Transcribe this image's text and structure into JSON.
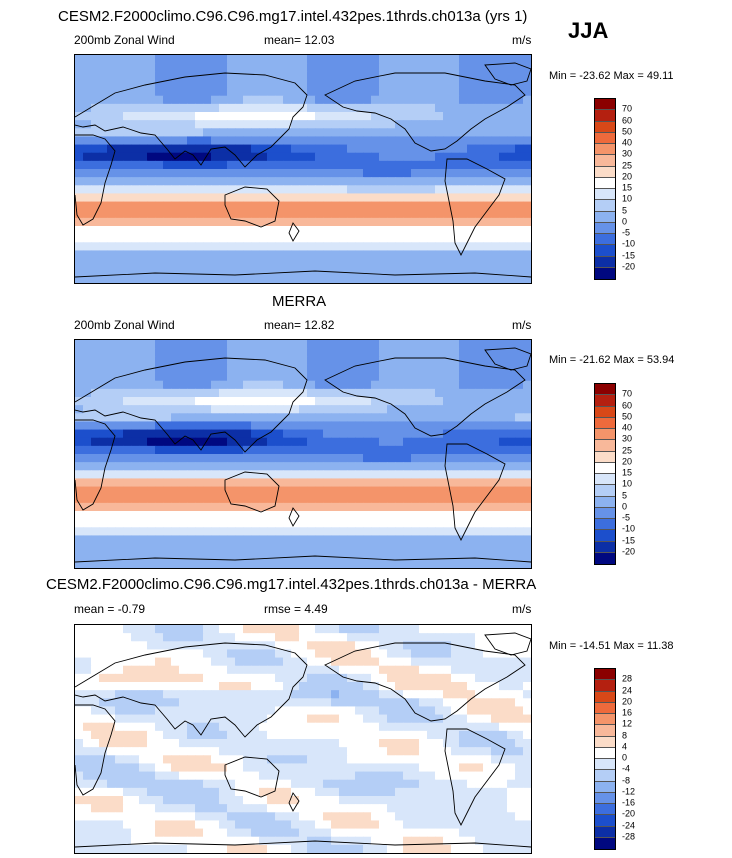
{
  "season": "JJA",
  "colors": {
    "scale": [
      "#8b0000",
      "#b42010",
      "#d84818",
      "#ee6a3c",
      "#f4946a",
      "#f8b89a",
      "#fbdcc8",
      "#ffffff",
      "#d8e6fa",
      "#b4cef6",
      "#8cb2f0",
      "#6692e8",
      "#3c6ede",
      "#1c4fcc",
      "#0c2fa6",
      "#000880"
    ]
  },
  "panels": [
    {
      "title": "CESM2.F2000climo.C96.C96.mg17.intel.432pes.1thrds.ch013a (yrs 1)",
      "left_label": "200mb Zonal Wind",
      "center_label": "mean=  12.03",
      "right_label": "m/s",
      "minmax": "Min = -23.62 Max =  49.11",
      "levels": [
        "70",
        "60",
        "50",
        "40",
        "30",
        "25",
        "20",
        "15",
        "10",
        "5",
        "0",
        "-5",
        "-10",
        "-15",
        "-20"
      ],
      "field": "model"
    },
    {
      "title": "MERRA",
      "left_label": "200mb Zonal Wind",
      "center_label": "mean=  12.82",
      "right_label": "m/s",
      "minmax": "Min = -21.62 Max =  53.94",
      "levels": [
        "70",
        "60",
        "50",
        "40",
        "30",
        "25",
        "20",
        "15",
        "10",
        "5",
        "0",
        "-5",
        "-10",
        "-15",
        "-20"
      ],
      "field": "obs"
    },
    {
      "title": "CESM2.F2000climo.C96.C96.mg17.intel.432pes.1thrds.ch013a - MERRA",
      "left_label": "mean =  -0.79",
      "center_label": "rmse =   4.49",
      "right_label": "m/s",
      "minmax": "Min = -14.51 Max =  11.38",
      "levels": [
        "28",
        "24",
        "20",
        "16",
        "12",
        "8",
        "4",
        "0",
        "-4",
        "-8",
        "-12",
        "-16",
        "-20",
        "-24",
        "-28"
      ],
      "field": "diff"
    }
  ]
}
